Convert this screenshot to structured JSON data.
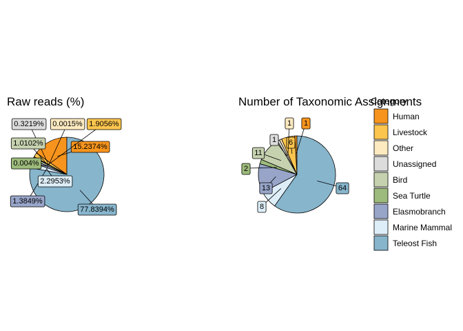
{
  "colors": {
    "Human": "#F7941D",
    "Livestock": "#FCC54E",
    "Other": "#FDEAC0",
    "Unassigned": "#DCDCDC",
    "Bird": "#C6D1AF",
    "Sea Turtle": "#9DBB7C",
    "Elasmobranch": "#98A5C9",
    "Marine Mammal": "#DDEEF8",
    "Teleost Fish": "#87B5CC"
  },
  "legend": {
    "title": "Category",
    "items": [
      "Human",
      "Livestock",
      "Other",
      "Unassigned",
      "Bird",
      "Sea Turtle",
      "Elasmobranch",
      "Marine Mammal",
      "Teleost Fish"
    ]
  },
  "chart_data": [
    {
      "type": "pie",
      "title": "Raw reads (%)",
      "slices": [
        {
          "category": "Human",
          "value": 15.2374,
          "label": "15.2374%"
        },
        {
          "category": "Livestock",
          "value": 1.9056,
          "label": "1.9056%"
        },
        {
          "category": "Other",
          "value": 0.0015,
          "label": "0.0015%"
        },
        {
          "category": "Unassigned",
          "value": 0.3219,
          "label": "0.3219%"
        },
        {
          "category": "Bird",
          "value": 1.0102,
          "label": "1.0102%"
        },
        {
          "category": "Sea Turtle",
          "value": 0.004,
          "label": "0.004%"
        },
        {
          "category": "Elasmobranch",
          "value": 1.3849,
          "label": "1.3849%"
        },
        {
          "category": "Marine Mammal",
          "value": 2.2953,
          "label": "2.2953%"
        },
        {
          "category": "Teleost Fish",
          "value": 77.8394,
          "label": "77.8394%"
        }
      ]
    },
    {
      "type": "pie",
      "title": "Number of Taxonomic Assignments",
      "slices": [
        {
          "category": "Human",
          "value": 1,
          "label": "1"
        },
        {
          "category": "Livestock",
          "value": 6,
          "label": "6"
        },
        {
          "category": "Other",
          "value": 1,
          "label": "1"
        },
        {
          "category": "Unassigned",
          "value": 1,
          "label": "1"
        },
        {
          "category": "Bird",
          "value": 11,
          "label": "11"
        },
        {
          "category": "Sea Turtle",
          "value": 2,
          "label": "2"
        },
        {
          "category": "Elasmobranch",
          "value": 13,
          "label": "13"
        },
        {
          "category": "Marine Mammal",
          "value": 8,
          "label": "8"
        },
        {
          "category": "Teleost Fish",
          "value": 64,
          "label": "64"
        }
      ]
    }
  ]
}
